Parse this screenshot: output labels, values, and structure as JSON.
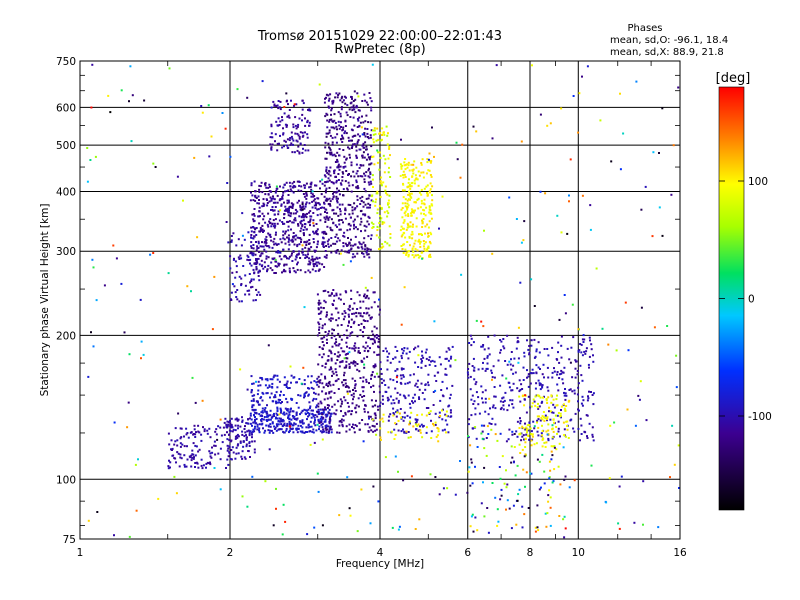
{
  "chart_data": {
    "type": "scatter",
    "title": "Tromsø 20151029 22:00:00–22:01:43",
    "subtitle": "RwPretec (8p)",
    "xlabel": "Frequency [MHz]",
    "ylabel": "Stationary phase Virtual Height [km]",
    "x_scale": "log",
    "y_scale": "log",
    "xlim": [
      1,
      16
    ],
    "ylim": [
      75,
      750
    ],
    "x_ticks": [
      {
        "v": 1,
        "label": "1"
      },
      {
        "v": 2,
        "label": "2"
      },
      {
        "v": 4,
        "label": "4"
      },
      {
        "v": 6,
        "label": "6"
      },
      {
        "v": 8,
        "label": "8"
      },
      {
        "v": 10,
        "label": "10"
      },
      {
        "v": 16,
        "label": "16"
      }
    ],
    "y_ticks": [
      {
        "v": 75,
        "label": "75"
      },
      {
        "v": 100,
        "label": "100"
      },
      {
        "v": 200,
        "label": "200"
      },
      {
        "v": 300,
        "label": "300"
      },
      {
        "v": 400,
        "label": "400"
      },
      {
        "v": 500,
        "label": "500"
      },
      {
        "v": 600,
        "label": "600"
      },
      {
        "v": 750,
        "label": "750"
      }
    ],
    "grid": true,
    "stats": {
      "heading": "Phases",
      "line1": "mean, sd,O: -96.1, 18.4",
      "line2": "mean, sd,X: 88.9, 21.8"
    },
    "colorbar": {
      "label": "[deg]",
      "range": [
        -180,
        180
      ],
      "ticks": [
        {
          "v": 100,
          "label": "100"
        },
        {
          "v": 0,
          "label": "0"
        },
        {
          "v": -100,
          "label": "-100"
        }
      ]
    },
    "clusters": [
      {
        "x": [
          2.2,
          3.1
        ],
        "y": [
          270,
          420
        ],
        "phase": [
          -125,
          -100
        ],
        "n": 600
      },
      {
        "x": [
          2.4,
          2.9
        ],
        "y": [
          480,
          620
        ],
        "phase": [
          -120,
          -100
        ],
        "n": 120
      },
      {
        "x": [
          2.0,
          2.3
        ],
        "y": [
          235,
          330
        ],
        "phase": [
          -115,
          -90
        ],
        "n": 80
      },
      {
        "x": [
          3.1,
          3.85
        ],
        "y": [
          290,
          650
        ],
        "phase": [
          -135,
          -105
        ],
        "n": 550
      },
      {
        "x": [
          3.85,
          4.2
        ],
        "y": [
          300,
          550
        ],
        "phase": [
          60,
          110
        ],
        "n": 110
      },
      {
        "x": [
          4.4,
          5.1
        ],
        "y": [
          290,
          470
        ],
        "phase": [
          85,
          110
        ],
        "n": 260
      },
      {
        "x": [
          1.5,
          2.0
        ],
        "y": [
          105,
          130
        ],
        "phase": [
          -115,
          -95
        ],
        "n": 130
      },
      {
        "x": [
          1.95,
          2.25
        ],
        "y": [
          110,
          135
        ],
        "phase": [
          -115,
          -95
        ],
        "n": 110
      },
      {
        "x": [
          2.2,
          3.2
        ],
        "y": [
          125,
          140
        ],
        "phase": [
          -100,
          -80
        ],
        "n": 300
      },
      {
        "x": [
          2.2,
          3.0
        ],
        "y": [
          140,
          165
        ],
        "phase": [
          -100,
          -80
        ],
        "n": 140
      },
      {
        "x": [
          3.0,
          4.0
        ],
        "y": [
          125,
          250
        ],
        "phase": [
          -130,
          -110
        ],
        "n": 480
      },
      {
        "x": [
          4.0,
          5.6
        ],
        "y": [
          125,
          190
        ],
        "phase": [
          -110,
          -90
        ],
        "n": 220
      },
      {
        "x": [
          4.0,
          5.5
        ],
        "y": [
          120,
          140
        ],
        "phase": [
          80,
          120
        ],
        "n": 50
      },
      {
        "x": [
          6.0,
          10.8
        ],
        "y": [
          120,
          200
        ],
        "phase": [
          -110,
          -90
        ],
        "n": 380
      },
      {
        "x": [
          7.6,
          9.6
        ],
        "y": [
          115,
          150
        ],
        "phase": [
          80,
          110
        ],
        "n": 120
      },
      {
        "x": [
          6.0,
          9.5
        ],
        "y": [
          78,
          130
        ],
        "phase": [
          -160,
          150
        ],
        "n": 120
      },
      {
        "x": [
          1.0,
          16.0
        ],
        "y": [
          75,
          750
        ],
        "phase": [
          -180,
          180
        ],
        "n": 330
      }
    ]
  }
}
